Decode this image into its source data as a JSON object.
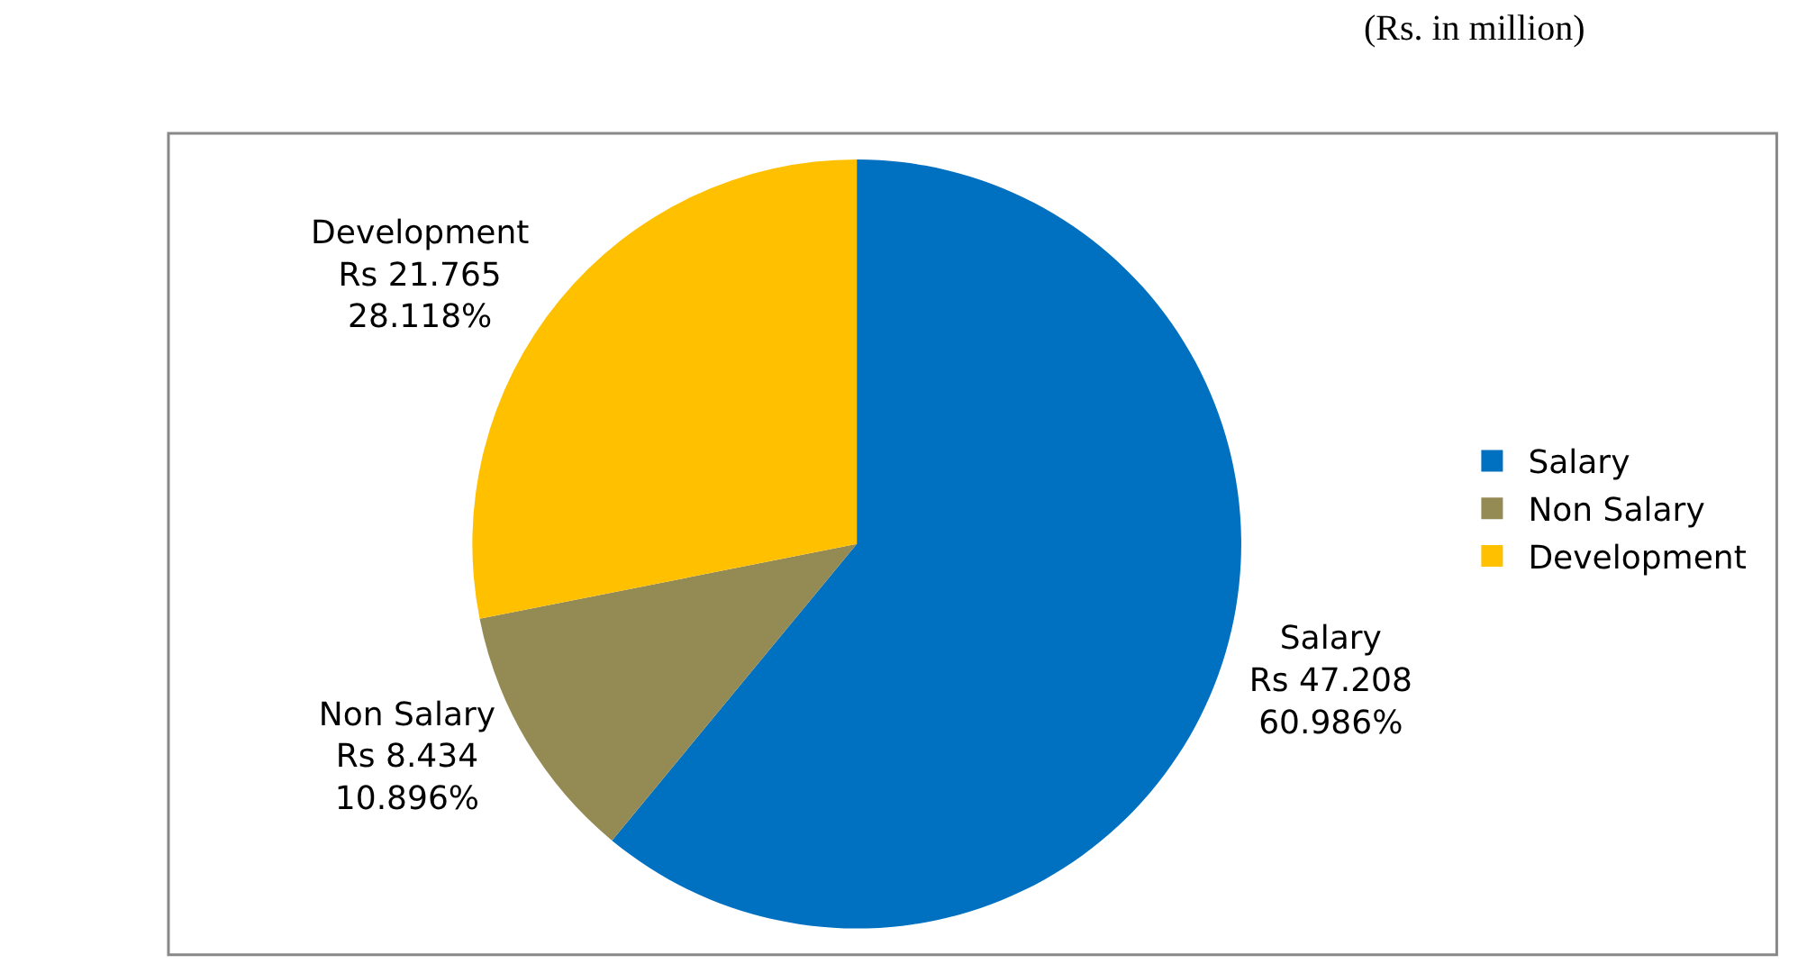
{
  "chart_data": {
    "type": "pie",
    "title": "(Rs. in million)",
    "categories": [
      "Salary",
      "Non Salary",
      "Development"
    ],
    "values": [
      47.208,
      8.434,
      21.765
    ],
    "colors": [
      "#0070c0",
      "#948a54",
      "#ffc000"
    ],
    "value_labels": [
      "Rs 47.208\n60.986%",
      "Rs 8.434\n10.896%",
      "Rs 21.765\n28.118%"
    ],
    "legend": "right"
  }
}
